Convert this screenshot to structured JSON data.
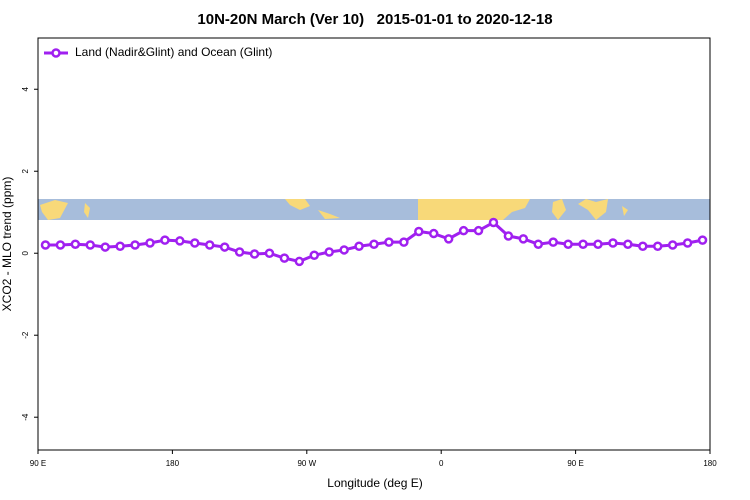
{
  "chart_data": {
    "type": "line",
    "title": "10N-20N March (Ver 10)   2015-01-01 to 2020-12-18",
    "x_label": "Longitude (deg E)",
    "y_label": "XCO2 - MLO trend (ppm)",
    "x": [
      95,
      105,
      115,
      125,
      135,
      145,
      155,
      165,
      175,
      185,
      195,
      205,
      215,
      225,
      235,
      245,
      255,
      265,
      275,
      285,
      295,
      305,
      315,
      325,
      335,
      345,
      355,
      365,
      375,
      385,
      395,
      405,
      415,
      425,
      435,
      445,
      455,
      465,
      475,
      485,
      495,
      505,
      515,
      525,
      535
    ],
    "series": [
      {
        "name": "Land (Nadir&Glint) and Ocean (Glint)",
        "color": "#a020f0",
        "values": [
          0.2,
          0.2,
          0.22,
          0.2,
          0.15,
          0.17,
          0.2,
          0.25,
          0.32,
          0.3,
          0.25,
          0.2,
          0.15,
          0.03,
          -0.02,
          0,
          -0.12,
          -0.2,
          -0.05,
          0.03,
          0.08,
          0.17,
          0.22,
          0.27,
          0.27,
          0.53,
          0.48,
          0.35,
          0.55,
          0.55,
          0.75,
          0.42,
          0.35,
          0.22,
          0.27,
          0.22,
          0.22,
          0.22,
          0.25,
          0.22,
          0.17,
          0.17,
          0.2,
          0.25,
          0.32
        ]
      }
    ],
    "xlim": [
      90,
      540
    ],
    "xticks": [
      {
        "value": 90,
        "label": "90 E"
      },
      {
        "value": 180,
        "label": "180"
      },
      {
        "value": 270,
        "label": "90 W"
      },
      {
        "value": 360,
        "label": "0"
      },
      {
        "value": 450,
        "label": "90 E"
      },
      {
        "value": 540,
        "label": "180"
      }
    ],
    "ylim": [
      -4.8,
      5.25
    ],
    "yticks": [
      -4,
      -2,
      0,
      2,
      4
    ],
    "legend": "top-left"
  }
}
